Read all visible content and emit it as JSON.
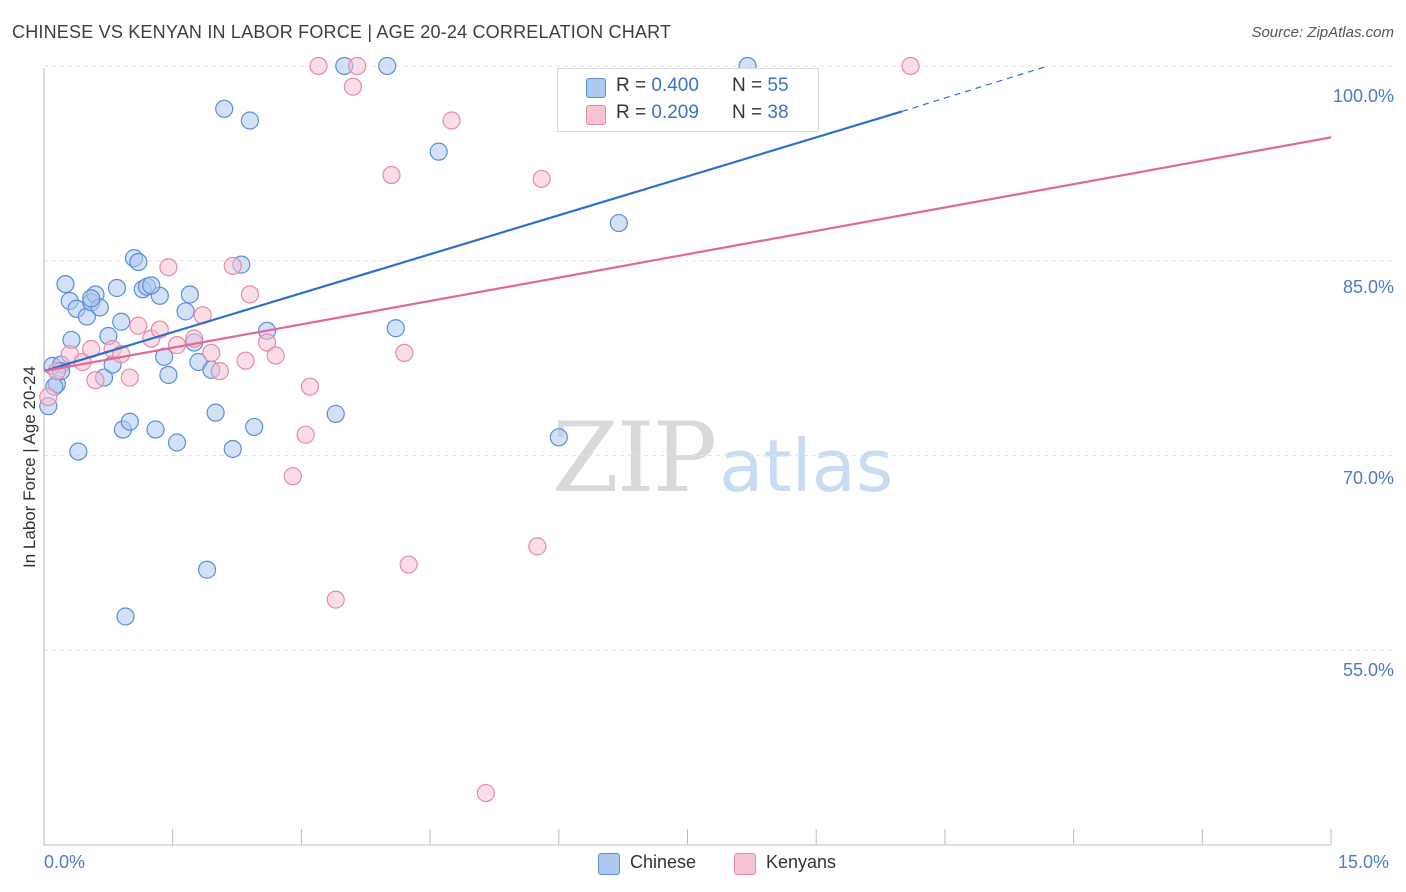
{
  "title": "CHINESE VS KENYAN IN LABOR FORCE | AGE 20-24 CORRELATION CHART",
  "source": "Source: ZipAtlas.com",
  "watermark": {
    "zip": "ZIP",
    "atlas": "atlas"
  },
  "legend": {
    "chinese": {
      "r_label": "R = ",
      "r_value": "0.400",
      "n_label": "N = ",
      "n_value": "55"
    },
    "kenyans": {
      "r_label": "R = ",
      "r_value": "0.209",
      "n_label": "N = ",
      "n_value": "38"
    }
  },
  "bottom_legend": {
    "chinese": "Chinese",
    "kenyans": "Kenyans"
  },
  "colors": {
    "chinese_fill": "#adc9ef",
    "chinese_stroke": "#5b8fd6",
    "chinese_line": "#2f6fcc",
    "kenyans_fill": "#f6c3d3",
    "kenyans_stroke": "#e889a8",
    "kenyans_line": "#e0689a",
    "axis_label": "#4a7cc7",
    "grid": "#e3e3e3"
  },
  "chart_data": {
    "type": "scatter",
    "title": "CHINESE VS KENYAN IN LABOR FORCE | AGE 20-24 CORRELATION CHART",
    "xlabel": "",
    "ylabel": "In Labor Force | Age 20-24",
    "xlim": [
      0.0,
      15.0
    ],
    "ylim": [
      40.0,
      102.0
    ],
    "x_ticks": [
      "0.0%",
      "15.0%"
    ],
    "y_ticks": [
      {
        "value": 100.0,
        "label": "100.0%"
      },
      {
        "value": 85.0,
        "label": "85.0%"
      },
      {
        "value": 70.0,
        "label": "70.0%"
      },
      {
        "value": 55.0,
        "label": "55.0%"
      }
    ],
    "grid": true,
    "legend_position": "top-center",
    "series": [
      {
        "name": "Chinese",
        "points": [
          [
            0.05,
            73.8
          ],
          [
            0.1,
            76.9
          ],
          [
            0.15,
            75.5
          ],
          [
            0.2,
            77.0
          ],
          [
            0.25,
            83.2
          ],
          [
            0.3,
            81.9
          ],
          [
            0.32,
            78.9
          ],
          [
            0.38,
            81.3
          ],
          [
            0.4,
            70.3
          ],
          [
            0.5,
            80.7
          ],
          [
            0.55,
            81.8
          ],
          [
            0.6,
            82.4
          ],
          [
            0.65,
            81.4
          ],
          [
            0.7,
            76.0
          ],
          [
            0.75,
            79.2
          ],
          [
            0.8,
            77.0
          ],
          [
            0.85,
            82.9
          ],
          [
            0.9,
            80.3
          ],
          [
            0.92,
            72.0
          ],
          [
            1.0,
            72.6
          ],
          [
            1.05,
            85.2
          ],
          [
            1.1,
            84.9
          ],
          [
            1.15,
            82.8
          ],
          [
            1.2,
            83.0
          ],
          [
            1.3,
            72.0
          ],
          [
            1.35,
            82.3
          ],
          [
            1.4,
            77.6
          ],
          [
            1.45,
            76.2
          ],
          [
            1.55,
            71.0
          ],
          [
            1.65,
            81.1
          ],
          [
            1.7,
            82.4
          ],
          [
            1.75,
            78.7
          ],
          [
            1.8,
            77.2
          ],
          [
            1.9,
            61.2
          ],
          [
            1.95,
            76.6
          ],
          [
            2.0,
            73.3
          ],
          [
            2.1,
            96.7
          ],
          [
            2.2,
            70.5
          ],
          [
            2.3,
            84.7
          ],
          [
            2.4,
            95.8
          ],
          [
            2.45,
            72.2
          ],
          [
            2.6,
            79.6
          ],
          [
            0.95,
            57.6
          ],
          [
            3.4,
            73.2
          ],
          [
            3.5,
            100.0
          ],
          [
            4.0,
            100.0
          ],
          [
            4.1,
            79.8
          ],
          [
            4.6,
            93.4
          ],
          [
            6.0,
            71.4
          ],
          [
            6.7,
            87.9
          ],
          [
            8.2,
            100.0
          ],
          [
            0.12,
            75.3
          ],
          [
            0.55,
            82.1
          ],
          [
            1.25,
            83.1
          ],
          [
            0.2,
            76.5
          ]
        ],
        "trend": {
          "x": [
            0.0,
            10.0
          ],
          "y": [
            76.5,
            96.5
          ],
          "dashed_to": [
            11.7,
            100.0
          ]
        }
      },
      {
        "name": "Kenyans",
        "points": [
          [
            0.05,
            74.5
          ],
          [
            0.15,
            76.5
          ],
          [
            0.3,
            77.8
          ],
          [
            0.45,
            77.2
          ],
          [
            0.55,
            78.2
          ],
          [
            0.6,
            75.8
          ],
          [
            0.8,
            78.2
          ],
          [
            0.9,
            77.8
          ],
          [
            1.0,
            76.0
          ],
          [
            1.1,
            80.0
          ],
          [
            1.25,
            79.0
          ],
          [
            1.35,
            79.7
          ],
          [
            1.45,
            84.5
          ],
          [
            1.55,
            78.5
          ],
          [
            1.75,
            79.0
          ],
          [
            1.85,
            80.8
          ],
          [
            1.95,
            77.9
          ],
          [
            2.05,
            76.5
          ],
          [
            2.2,
            84.6
          ],
          [
            2.35,
            77.3
          ],
          [
            2.4,
            82.4
          ],
          [
            2.6,
            78.7
          ],
          [
            2.7,
            77.7
          ],
          [
            2.9,
            68.4
          ],
          [
            3.05,
            71.6
          ],
          [
            3.1,
            75.3
          ],
          [
            3.2,
            100.0
          ],
          [
            3.4,
            58.9
          ],
          [
            3.6,
            98.4
          ],
          [
            3.65,
            100.0
          ],
          [
            4.05,
            91.6
          ],
          [
            4.2,
            77.9
          ],
          [
            4.25,
            61.6
          ],
          [
            4.75,
            95.8
          ],
          [
            5.15,
            44.0
          ],
          [
            5.75,
            63.0
          ],
          [
            5.8,
            91.3
          ],
          [
            10.1,
            100.0
          ]
        ],
        "trend": {
          "x": [
            0.0,
            15.0
          ],
          "y": [
            76.5,
            94.5
          ]
        }
      }
    ]
  }
}
